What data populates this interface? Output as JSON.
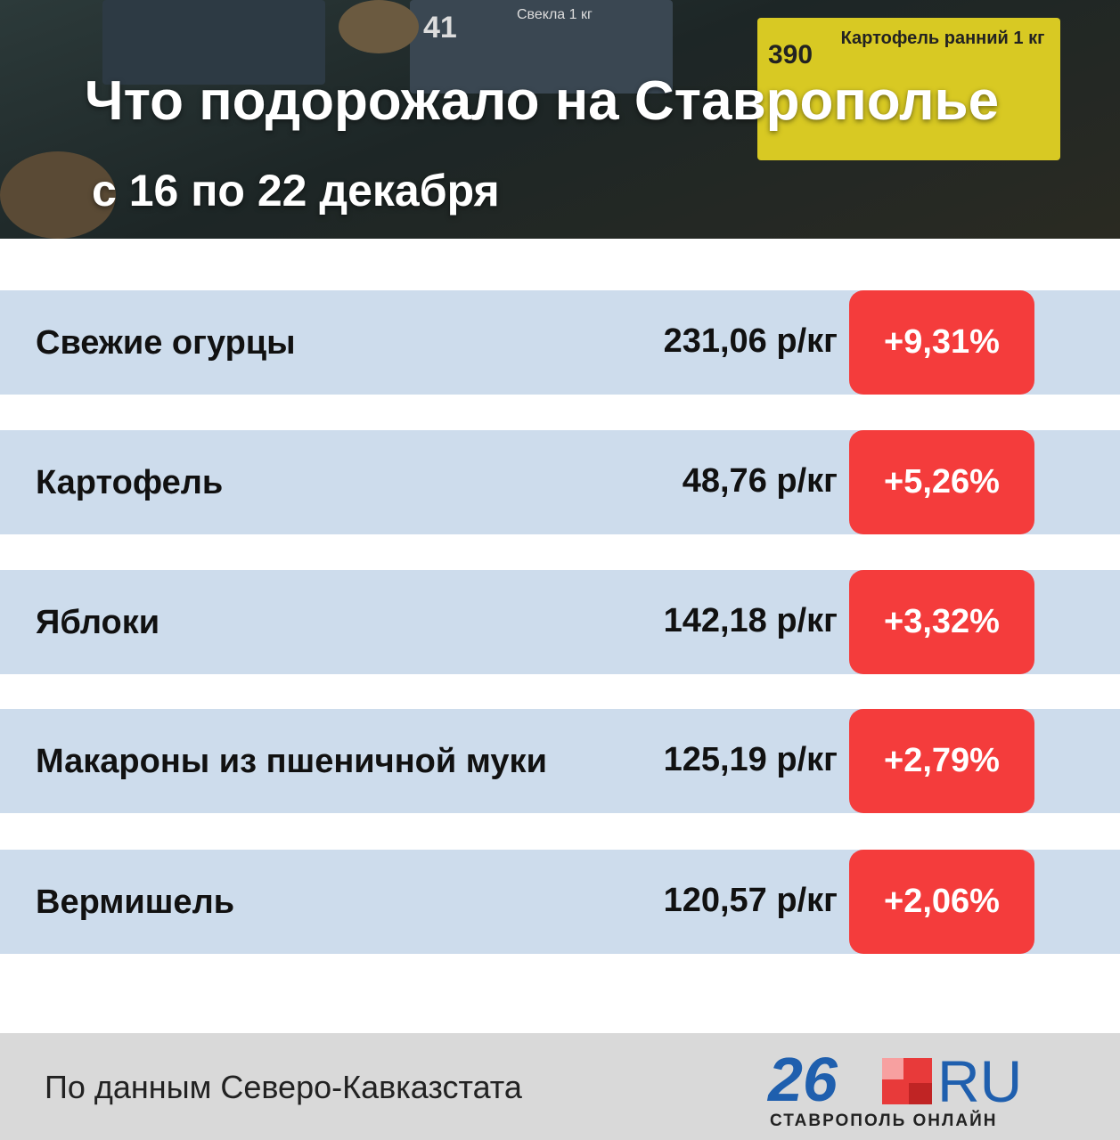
{
  "header": {
    "title": "Что подорожало на Ставрополье",
    "subtitle": "с 16 по 22 декабря",
    "photo_labels": [
      "41",
      "Свекла 1 кг",
      "390",
      "Картофель ранний 1 кг"
    ]
  },
  "table": {
    "rows": [
      [
        "Свежие огурцы",
        "231,06 р/кг",
        "+9,31%"
      ],
      [
        "Картофель",
        "48,76 р/кг",
        "+5,26%"
      ],
      [
        "Яблоки",
        "142,18 р/кг",
        "+3,32%"
      ],
      [
        "Макароны из пшеничной муки",
        "125,19 р/кг",
        "+2,79%"
      ],
      [
        "Вермишель",
        "120,57 р/кг",
        "+2,06%"
      ]
    ]
  },
  "footer": {
    "source": "По данным Северо-Кавказстата",
    "logo_number": "26",
    "logo_domain": "RU",
    "logo_caption": "СТАВРОПОЛЬ ОНЛАЙН"
  }
}
